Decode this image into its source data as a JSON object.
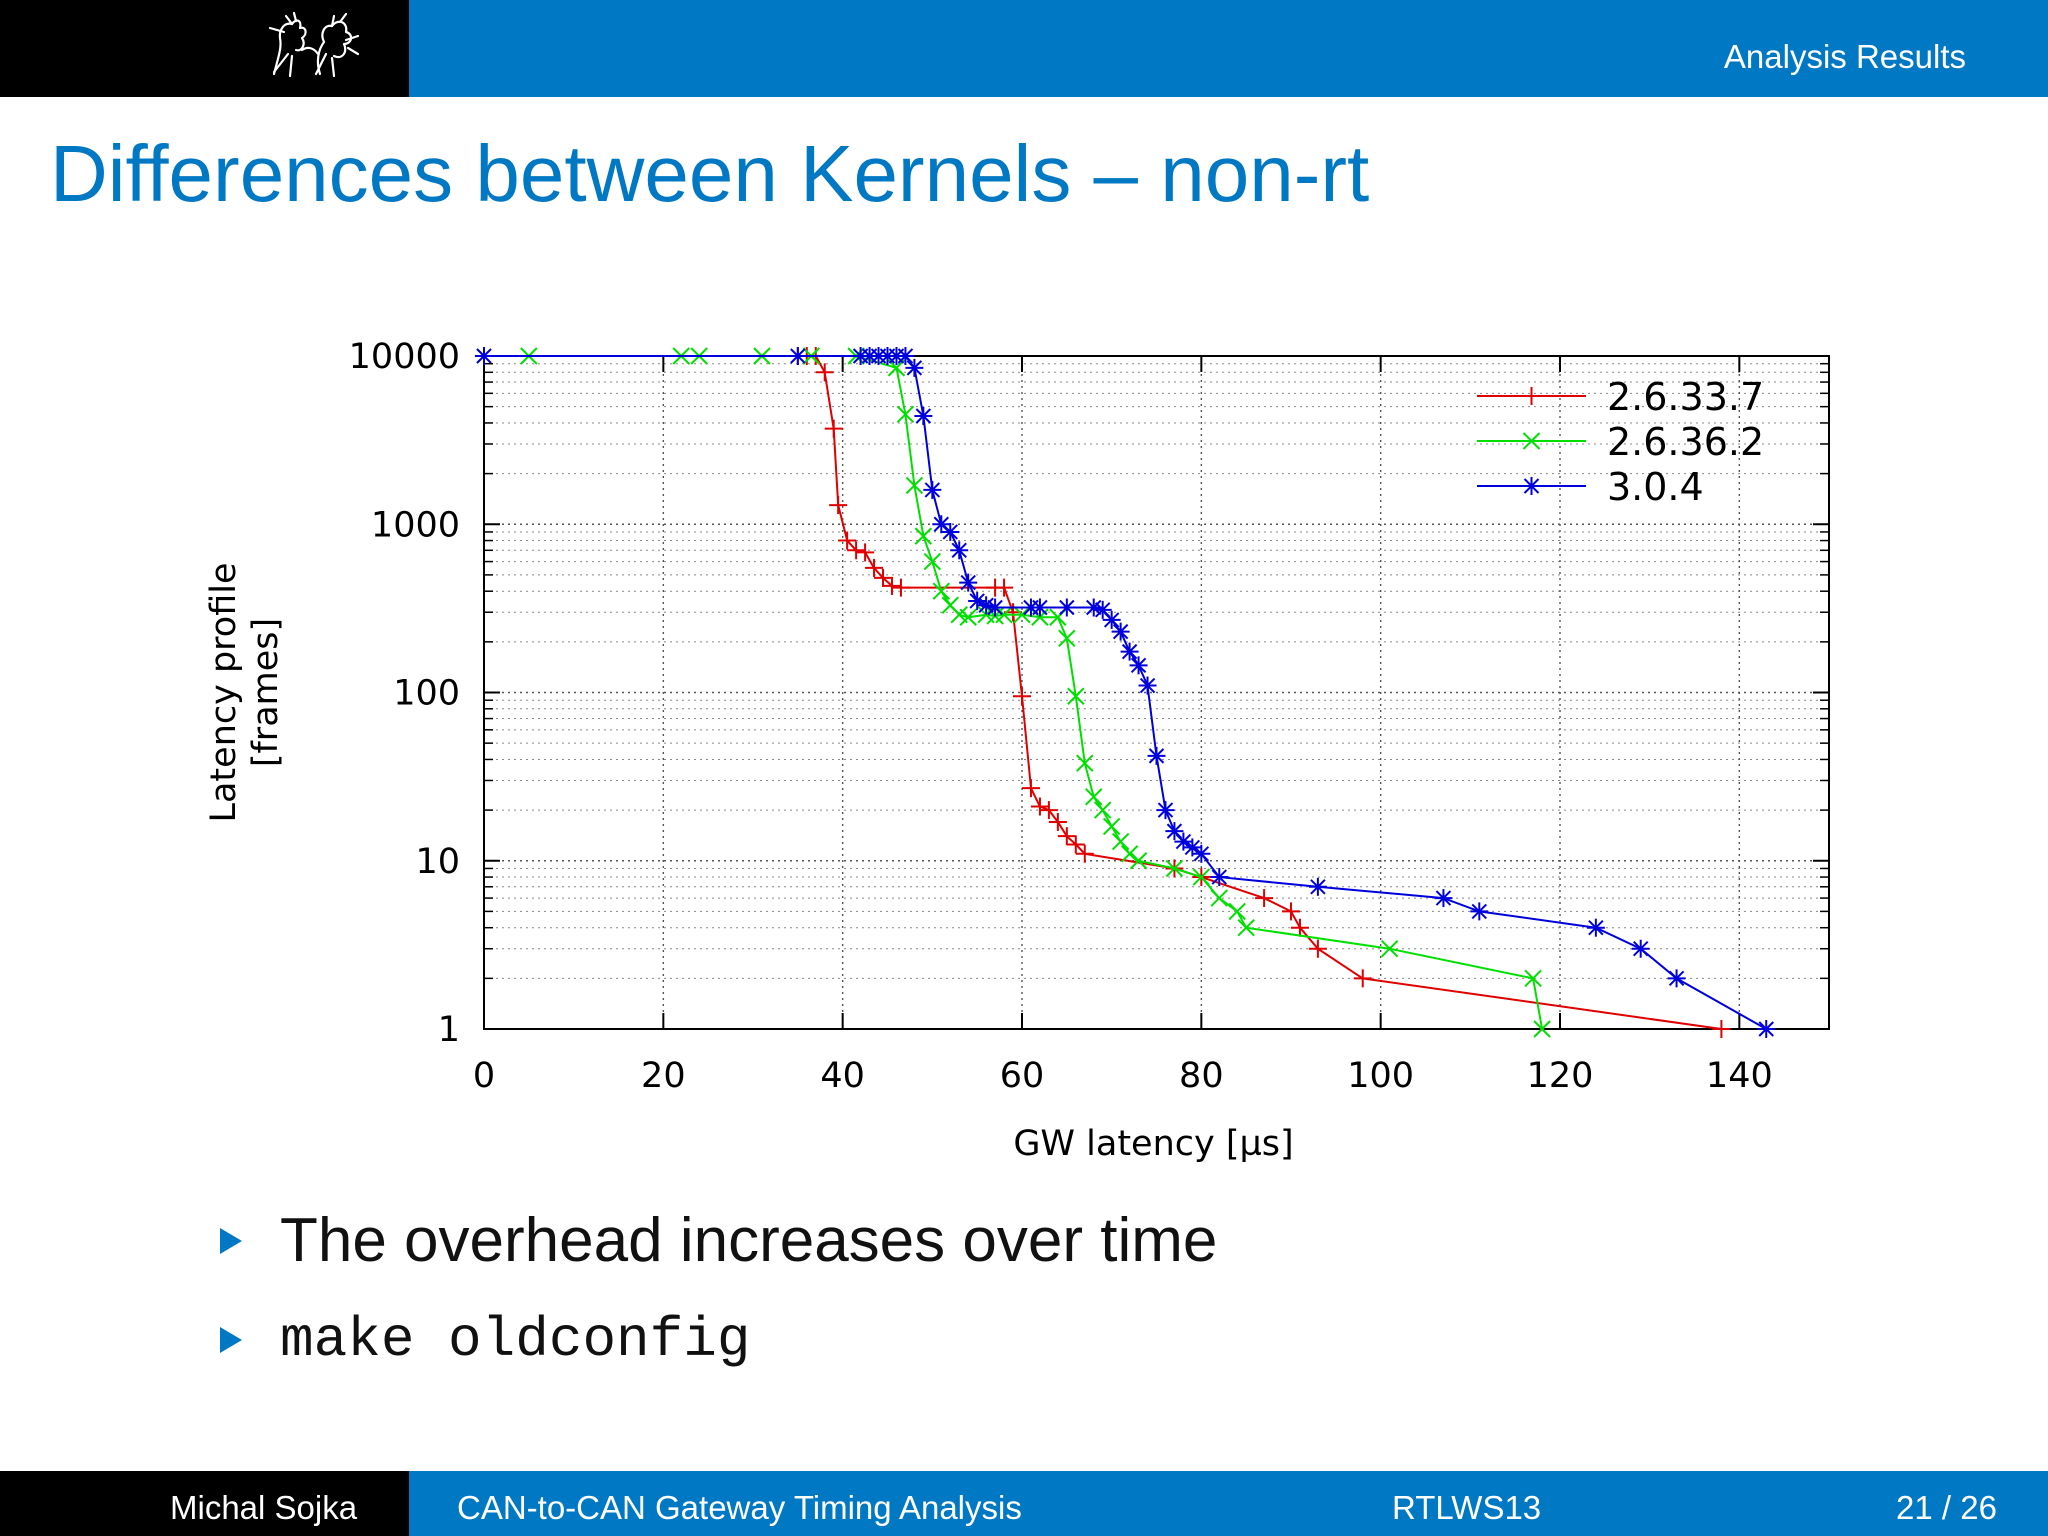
{
  "header": {
    "section": "Analysis Results"
  },
  "title": "Differences between Kernels – non-rt",
  "bullets": [
    "The overhead increases over time",
    "make oldconfig"
  ],
  "footer": {
    "author": "Michal Sojka",
    "talk_title": "CAN-to-CAN Gateway Timing Analysis",
    "venue": "RTLWS13",
    "page": "21 / 26"
  },
  "colors": {
    "accent": "#0178c4",
    "dark": "#000000"
  },
  "chart_data": {
    "type": "line",
    "title": "",
    "xlabel": "GW latency [µs]",
    "ylabel": "Latency profile\n[frames]",
    "xlim": [
      0,
      150
    ],
    "ylim": [
      1,
      10000
    ],
    "yscale": "log",
    "xticks": [
      "0",
      "20",
      "40",
      "60",
      "80",
      "100",
      "120",
      "140"
    ],
    "yticks": [
      "1",
      "10",
      "100",
      "1000",
      "10000"
    ],
    "grid": true,
    "legend": "top-right",
    "series": [
      {
        "name": "2.6.33.7",
        "color": "#e00000",
        "marker": "plus",
        "points": [
          [
            35,
            10000
          ],
          [
            36,
            10000
          ],
          [
            37,
            10000
          ],
          [
            38,
            8000
          ],
          [
            39,
            3700
          ],
          [
            39.5,
            1300
          ],
          [
            40.5,
            800
          ],
          [
            41.5,
            700
          ],
          [
            42.5,
            680
          ],
          [
            43.5,
            550
          ],
          [
            44.5,
            480
          ],
          [
            45.5,
            430
          ],
          [
            46.5,
            420
          ],
          [
            57,
            420
          ],
          [
            58,
            420
          ],
          [
            59,
            300
          ],
          [
            60,
            95
          ],
          [
            61,
            27
          ],
          [
            62,
            21
          ],
          [
            63,
            20
          ],
          [
            64,
            17
          ],
          [
            65,
            14
          ],
          [
            66,
            12.5
          ],
          [
            67,
            11
          ],
          [
            77,
            9
          ],
          [
            80,
            8
          ],
          [
            87,
            6
          ],
          [
            90,
            5
          ],
          [
            91,
            4
          ],
          [
            93,
            3
          ],
          [
            98,
            2
          ],
          [
            138,
            1
          ]
        ]
      },
      {
        "name": "2.6.36.2",
        "color": "#00e000",
        "marker": "cross",
        "points": [
          [
            5,
            10000
          ],
          [
            22,
            10000
          ],
          [
            24,
            10000
          ],
          [
            31,
            10000
          ],
          [
            36.5,
            10000
          ],
          [
            41.5,
            10000
          ],
          [
            46,
            8500
          ],
          [
            47,
            4500
          ],
          [
            48,
            1700
          ],
          [
            49,
            850
          ],
          [
            50,
            600
          ],
          [
            51,
            400
          ],
          [
            52,
            330
          ],
          [
            53,
            290
          ],
          [
            54,
            280
          ],
          [
            56,
            290
          ],
          [
            57,
            285
          ],
          [
            58,
            290
          ],
          [
            60,
            290
          ],
          [
            62,
            280
          ],
          [
            64,
            280
          ],
          [
            65,
            210
          ],
          [
            66,
            95
          ],
          [
            67,
            38
          ],
          [
            68,
            24
          ],
          [
            69,
            20
          ],
          [
            70,
            16
          ],
          [
            71,
            13
          ],
          [
            72,
            11
          ],
          [
            73,
            10
          ],
          [
            77,
            9
          ],
          [
            80,
            8
          ],
          [
            82,
            6
          ],
          [
            84,
            5
          ],
          [
            85,
            4
          ],
          [
            101,
            3
          ],
          [
            117,
            2
          ],
          [
            118,
            1
          ]
        ]
      },
      {
        "name": "3.0.4",
        "color": "#0000dd",
        "marker": "star",
        "points": [
          [
            0,
            10000
          ],
          [
            35,
            10000
          ],
          [
            42,
            10000
          ],
          [
            43,
            10000
          ],
          [
            44,
            10000
          ],
          [
            45,
            10000
          ],
          [
            46,
            10000
          ],
          [
            47,
            10000
          ],
          [
            48,
            8500
          ],
          [
            49,
            4400
          ],
          [
            50,
            1600
          ],
          [
            51,
            1000
          ],
          [
            52,
            900
          ],
          [
            53,
            700
          ],
          [
            54,
            450
          ],
          [
            55,
            350
          ],
          [
            56,
            330
          ],
          [
            57,
            320
          ],
          [
            61,
            320
          ],
          [
            62,
            320
          ],
          [
            65,
            320
          ],
          [
            68,
            320
          ],
          [
            69,
            310
          ],
          [
            70,
            270
          ],
          [
            71,
            230
          ],
          [
            72,
            175
          ],
          [
            73,
            145
          ],
          [
            74,
            110
          ],
          [
            75,
            42
          ],
          [
            76,
            20
          ],
          [
            77,
            15
          ],
          [
            78,
            13
          ],
          [
            79,
            12
          ],
          [
            80,
            11
          ],
          [
            82,
            8
          ],
          [
            93,
            7
          ],
          [
            107,
            6
          ],
          [
            111,
            5
          ],
          [
            124,
            4
          ],
          [
            129,
            3
          ],
          [
            133,
            2
          ],
          [
            143,
            1
          ]
        ]
      }
    ]
  }
}
